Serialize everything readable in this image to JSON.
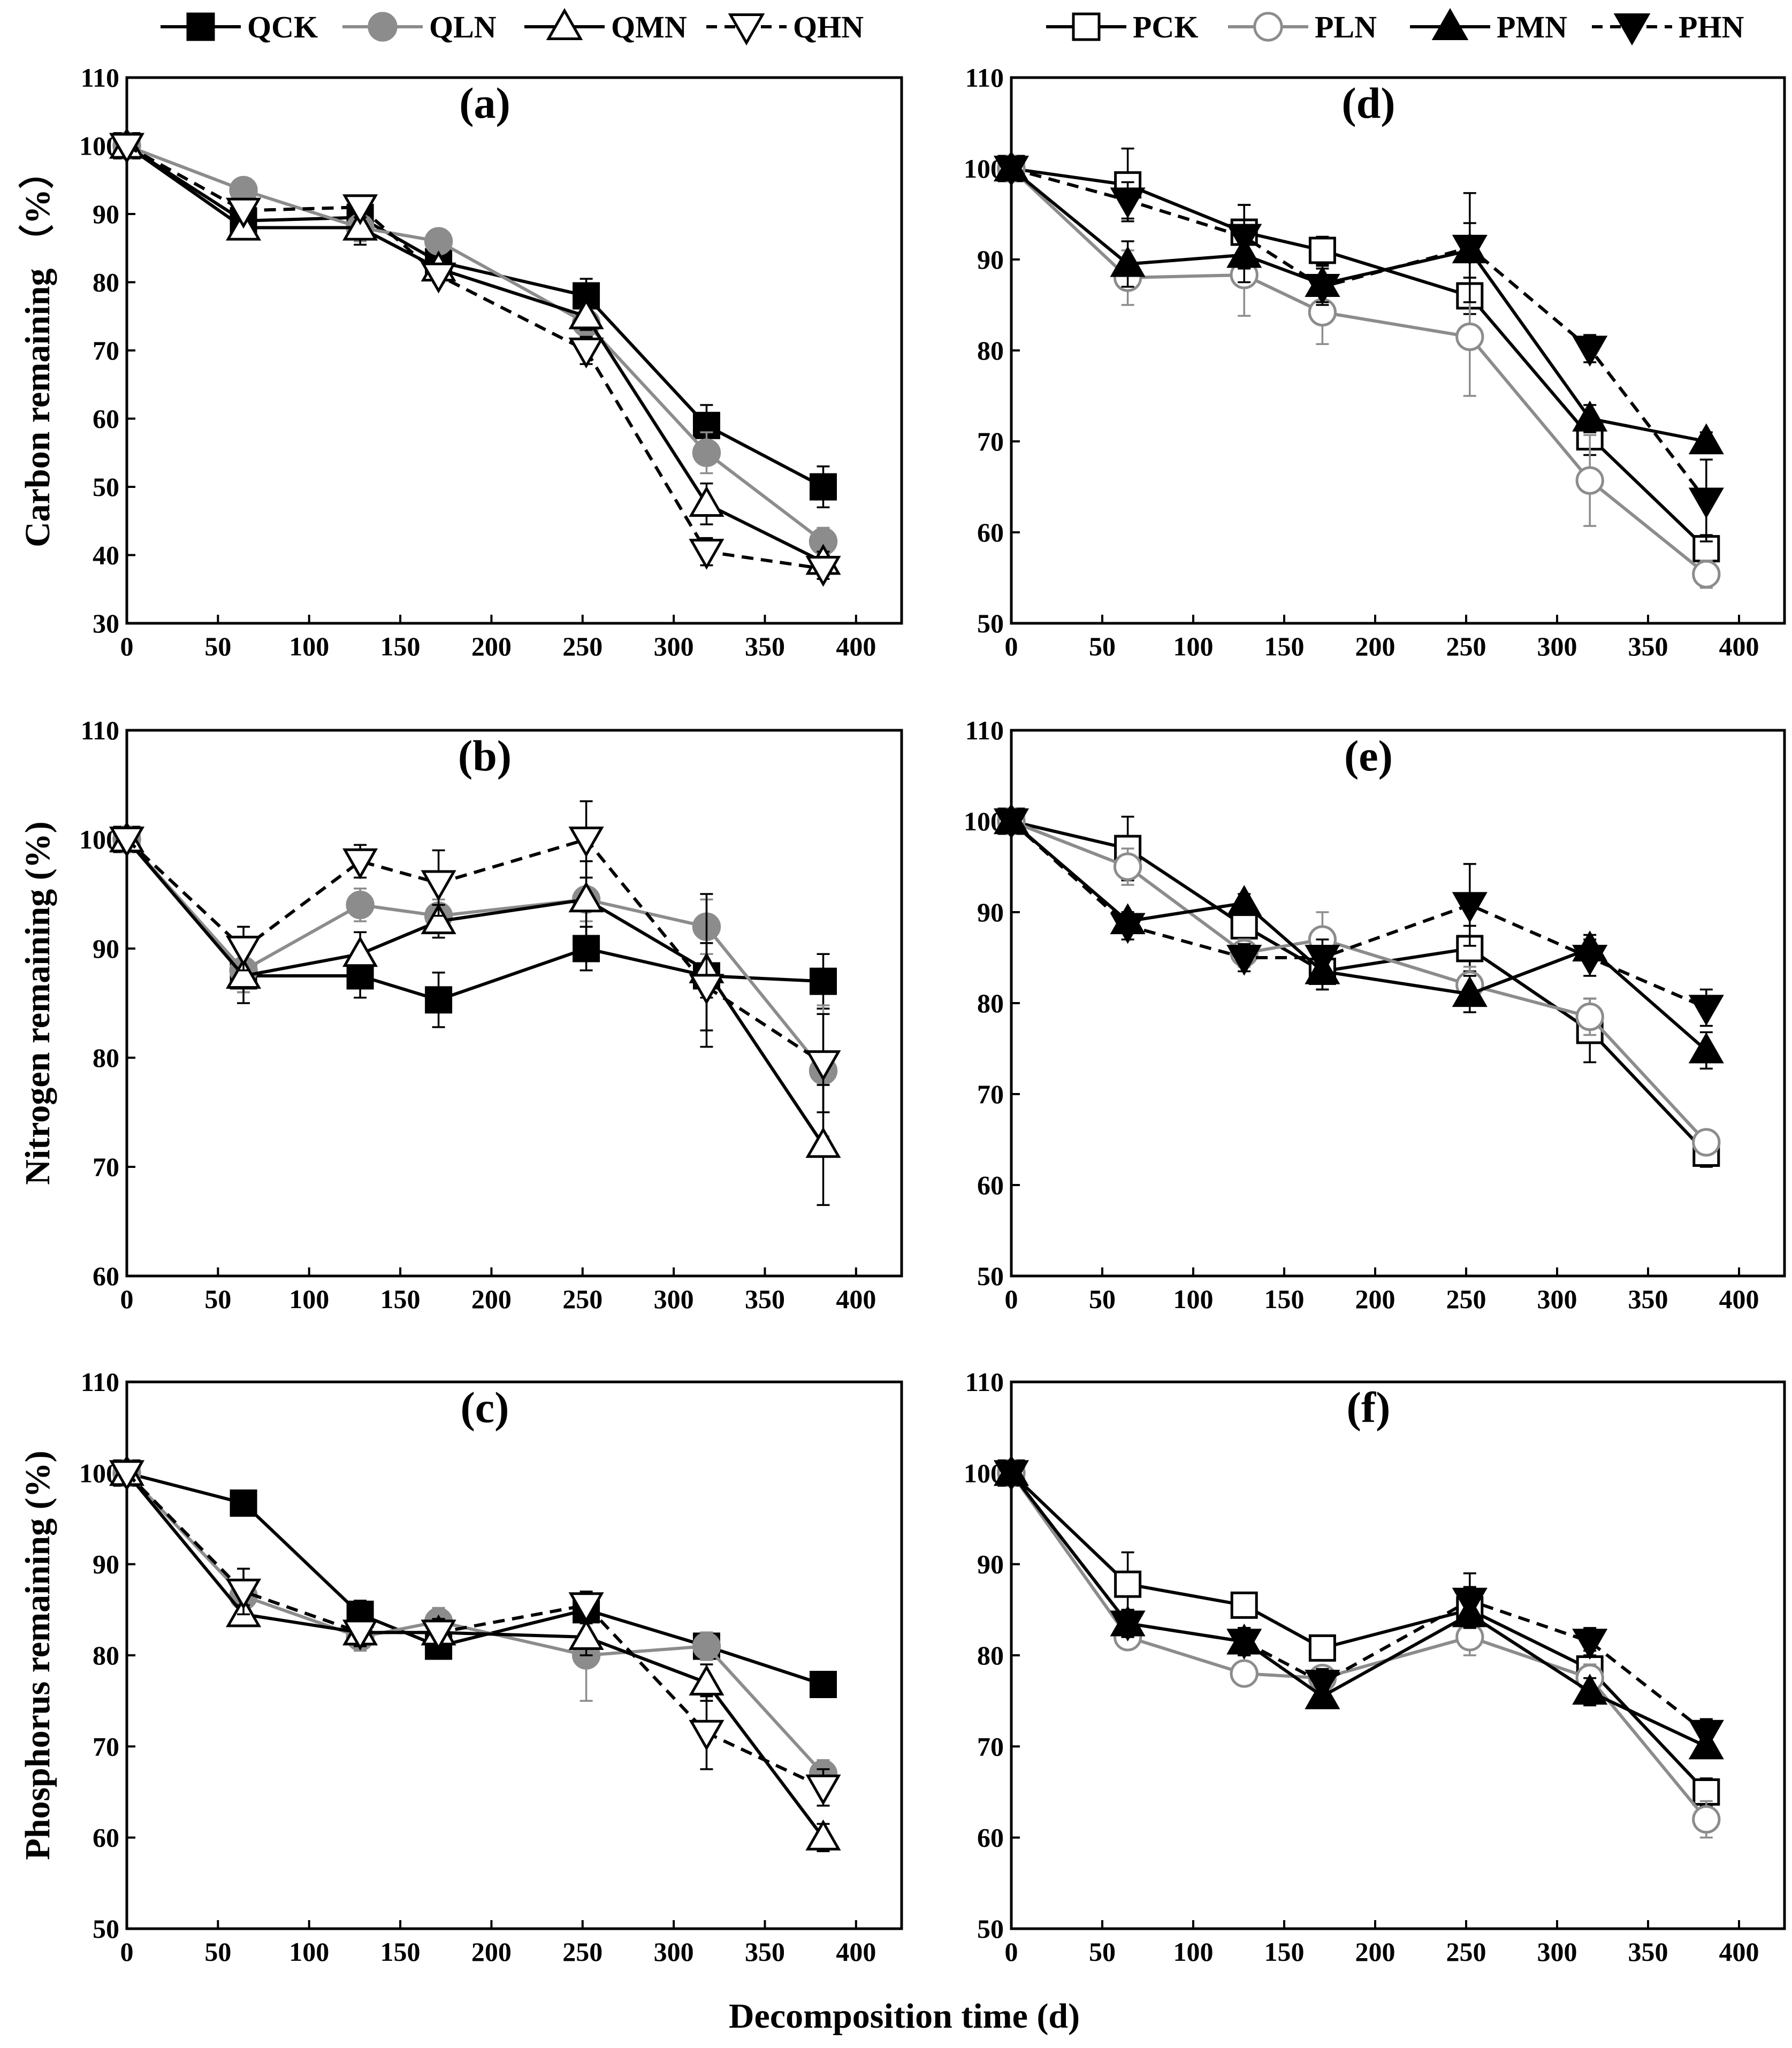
{
  "figure": {
    "xlabel": "Decomposition time (d)",
    "legend_left": [
      {
        "id": "QCK",
        "label": "QCK",
        "marker": "square",
        "fill": "#000000",
        "stroke": "#000000",
        "line": "#000000",
        "dash": false
      },
      {
        "id": "QLN",
        "label": "QLN",
        "marker": "circle",
        "fill": "#8c8c8c",
        "stroke": "#8c8c8c",
        "line": "#8c8c8c",
        "dash": false
      },
      {
        "id": "QMN",
        "label": "QMN",
        "marker": "triangle-up",
        "fill": "#ffffff",
        "stroke": "#000000",
        "line": "#000000",
        "dash": false
      },
      {
        "id": "QHN",
        "label": "QHN",
        "marker": "triangle-down",
        "fill": "#ffffff",
        "stroke": "#000000",
        "line": "#000000",
        "dash": true
      }
    ],
    "legend_right": [
      {
        "id": "PCK",
        "label": "PCK",
        "marker": "square",
        "fill": "#ffffff",
        "stroke": "#000000",
        "line": "#000000",
        "dash": false
      },
      {
        "id": "PLN",
        "label": "PLN",
        "marker": "circle",
        "fill": "#ffffff",
        "stroke": "#8c8c8c",
        "line": "#8c8c8c",
        "dash": false
      },
      {
        "id": "PMN",
        "label": "PMN",
        "marker": "triangle-up",
        "fill": "#000000",
        "stroke": "#000000",
        "line": "#000000",
        "dash": false
      },
      {
        "id": "PHN",
        "label": "PHN",
        "marker": "triangle-down",
        "fill": "#000000",
        "stroke": "#000000",
        "line": "#000000",
        "dash": true
      }
    ]
  },
  "chart_data": [
    {
      "panel": "(a)",
      "type": "line",
      "ylabel": "Carbon remaining （%）",
      "x": [
        0,
        64,
        128,
        171,
        252,
        318,
        382
      ],
      "xlim": [
        0,
        425
      ],
      "ylim": [
        30,
        110
      ],
      "xticks": [
        0,
        50,
        100,
        150,
        200,
        250,
        300,
        350,
        400
      ],
      "yticks": [
        30,
        40,
        50,
        60,
        70,
        80,
        90,
        100,
        110
      ],
      "series": [
        {
          "name": "QCK",
          "values": [
            100,
            89,
            89.5,
            83,
            78,
            59,
            50
          ],
          "errors": [
            0,
            1,
            1.5,
            1,
            2.5,
            3,
            3
          ]
        },
        {
          "name": "QLN",
          "values": [
            100,
            93.5,
            88,
            86,
            74,
            55,
            42
          ],
          "errors": [
            0,
            1.5,
            2,
            1,
            2,
            3,
            2
          ]
        },
        {
          "name": "QMN",
          "values": [
            100,
            88,
            88,
            82,
            75,
            47.5,
            39
          ],
          "errors": [
            0,
            1.5,
            2.5,
            1.5,
            2,
            3,
            1.5
          ]
        },
        {
          "name": "QHN",
          "values": [
            100,
            90.5,
            91,
            81,
            70,
            40.5,
            38
          ],
          "errors": [
            0,
            1.5,
            1.5,
            1,
            2,
            2,
            1.5
          ]
        }
      ]
    },
    {
      "panel": "(b)",
      "type": "line",
      "ylabel": "Nitrogen remaining (%)",
      "x": [
        0,
        64,
        128,
        171,
        252,
        318,
        382
      ],
      "xlim": [
        0,
        425
      ],
      "ylim": [
        60,
        110
      ],
      "xticks": [
        0,
        50,
        100,
        150,
        200,
        250,
        300,
        350,
        400
      ],
      "yticks": [
        60,
        70,
        80,
        90,
        100,
        110
      ],
      "series": [
        {
          "name": "QCK",
          "values": [
            100,
            87.5,
            87.5,
            85.3,
            90,
            87.5,
            87
          ],
          "errors": [
            0,
            1.5,
            2,
            2.5,
            2,
            2,
            2.5
          ]
        },
        {
          "name": "QLN",
          "values": [
            100,
            88,
            94,
            93,
            94.5,
            92,
            78.8
          ],
          "errors": [
            0,
            2,
            1.5,
            1.5,
            2,
            2.5,
            6
          ]
        },
        {
          "name": "QMN",
          "values": [
            100,
            87.5,
            89.5,
            92.5,
            94.5,
            88,
            72
          ],
          "errors": [
            0,
            2.5,
            2,
            1.5,
            3.5,
            7,
            5.5
          ]
        },
        {
          "name": "QHN",
          "values": [
            100,
            90,
            98,
            96,
            100,
            86.5,
            79.5
          ],
          "errors": [
            0,
            2,
            1.5,
            3,
            3.5,
            4,
            4.5
          ]
        }
      ]
    },
    {
      "panel": "(c)",
      "type": "line",
      "ylabel": "Phosphorus remaining (%)",
      "x": [
        0,
        64,
        128,
        171,
        252,
        318,
        382
      ],
      "xlim": [
        0,
        425
      ],
      "ylim": [
        50,
        110
      ],
      "xticks": [
        0,
        50,
        100,
        150,
        200,
        250,
        300,
        350,
        400
      ],
      "yticks": [
        50,
        60,
        70,
        80,
        90,
        100,
        110
      ],
      "series": [
        {
          "name": "QCK",
          "values": [
            100,
            96.7,
            84.5,
            81,
            85,
            81,
            76.8
          ],
          "errors": [
            0,
            1,
            1.5,
            1,
            1.5,
            1.5,
            1
          ]
        },
        {
          "name": "QLN",
          "values": [
            100,
            86.5,
            82,
            83.7,
            80,
            81,
            67
          ],
          "errors": [
            0,
            3,
            1.5,
            1.5,
            5,
            1.5,
            1.5
          ]
        },
        {
          "name": "QMN",
          "values": [
            100,
            84.5,
            82.5,
            82.5,
            82,
            77,
            60
          ],
          "errors": [
            0,
            1,
            1,
            1,
            2,
            2,
            1.5
          ]
        },
        {
          "name": "QHN",
          "values": [
            100,
            87,
            82.5,
            82.5,
            85.5,
            71.5,
            65.5
          ],
          "errors": [
            0,
            2.5,
            1.5,
            1.5,
            1.5,
            4,
            2
          ]
        }
      ]
    },
    {
      "panel": "(d)",
      "type": "line",
      "ylabel": "",
      "x": [
        0,
        64,
        128,
        171,
        252,
        318,
        382
      ],
      "xlim": [
        0,
        425
      ],
      "ylim": [
        50,
        110
      ],
      "xticks": [
        0,
        50,
        100,
        150,
        200,
        250,
        300,
        350,
        400
      ],
      "yticks": [
        50,
        60,
        70,
        80,
        90,
        100,
        110
      ],
      "series": [
        {
          "name": "PCK",
          "values": [
            100,
            98.2,
            93,
            91,
            86,
            70.5,
            58.2
          ],
          "errors": [
            0,
            4,
            3,
            1.5,
            2,
            2,
            1.5
          ]
        },
        {
          "name": "PLN",
          "values": [
            100,
            88,
            88.3,
            84.2,
            81.5,
            65.7,
            55.4
          ],
          "errors": [
            0,
            3,
            4.5,
            3.5,
            6.5,
            5,
            1.5
          ]
        },
        {
          "name": "PMN",
          "values": [
            100,
            89.5,
            90.5,
            87.3,
            91,
            72.5,
            70
          ],
          "errors": [
            0,
            2.5,
            3,
            2,
            3,
            1.5,
            1
          ]
        },
        {
          "name": "PHN",
          "values": [
            100,
            96.5,
            92.5,
            87,
            91.3,
            80.2,
            63.5
          ],
          "errors": [
            0,
            2,
            3.5,
            2,
            6,
            1.5,
            4.5
          ]
        }
      ]
    },
    {
      "panel": "(e)",
      "type": "line",
      "ylabel": "",
      "x": [
        0,
        64,
        128,
        171,
        252,
        318,
        382
      ],
      "xlim": [
        0,
        425
      ],
      "ylim": [
        50,
        110
      ],
      "xticks": [
        0,
        50,
        100,
        150,
        200,
        250,
        300,
        350,
        400
      ],
      "yticks": [
        50,
        60,
        70,
        80,
        90,
        100,
        110
      ],
      "series": [
        {
          "name": "PCK",
          "values": [
            100,
            97,
            88.5,
            83.5,
            86,
            77,
            63.5
          ],
          "errors": [
            0,
            3.5,
            2,
            2,
            2.5,
            3.5,
            1.5
          ]
        },
        {
          "name": "PLN",
          "values": [
            100,
            95,
            85.5,
            87,
            82,
            78.5,
            64.7
          ],
          "errors": [
            0,
            2,
            1.5,
            3,
            2,
            2,
            1
          ]
        },
        {
          "name": "PMN",
          "values": [
            100,
            89,
            91,
            83.5,
            81,
            86,
            74.8
          ],
          "errors": [
            0,
            1,
            1,
            2,
            2,
            1.5,
            2
          ]
        },
        {
          "name": "PHN",
          "values": [
            100,
            88.5,
            85,
            85,
            90.8,
            85,
            79.5
          ],
          "errors": [
            0,
            1.5,
            1.5,
            2,
            4.5,
            2,
            2
          ]
        }
      ]
    },
    {
      "panel": "(f)",
      "type": "line",
      "ylabel": "",
      "x": [
        0,
        64,
        128,
        171,
        252,
        318,
        382
      ],
      "xlim": [
        0,
        425
      ],
      "ylim": [
        50,
        110
      ],
      "xticks": [
        0,
        50,
        100,
        150,
        200,
        250,
        300,
        350,
        400
      ],
      "yticks": [
        50,
        60,
        70,
        80,
        90,
        100,
        110
      ],
      "series": [
        {
          "name": "PCK",
          "values": [
            100,
            87.8,
            85.5,
            80.8,
            85,
            78.5,
            65
          ],
          "errors": [
            0,
            3.5,
            1,
            1,
            2.5,
            2,
            1.5
          ]
        },
        {
          "name": "PLN",
          "values": [
            100,
            82,
            78,
            77.5,
            82,
            77.5,
            62
          ],
          "errors": [
            0,
            1,
            1,
            1,
            2,
            1.5,
            2
          ]
        },
        {
          "name": "PMN",
          "values": [
            100,
            83.5,
            81.5,
            75.5,
            84.5,
            76,
            70
          ],
          "errors": [
            0,
            1.5,
            1.5,
            1,
            1.5,
            1.5,
            1
          ]
        },
        {
          "name": "PHN",
          "values": [
            100,
            83.5,
            81.5,
            77,
            86,
            81.5,
            71.5
          ],
          "errors": [
            0,
            1.5,
            1.5,
            1.5,
            3,
            1.5,
            1.5
          ]
        }
      ]
    }
  ]
}
